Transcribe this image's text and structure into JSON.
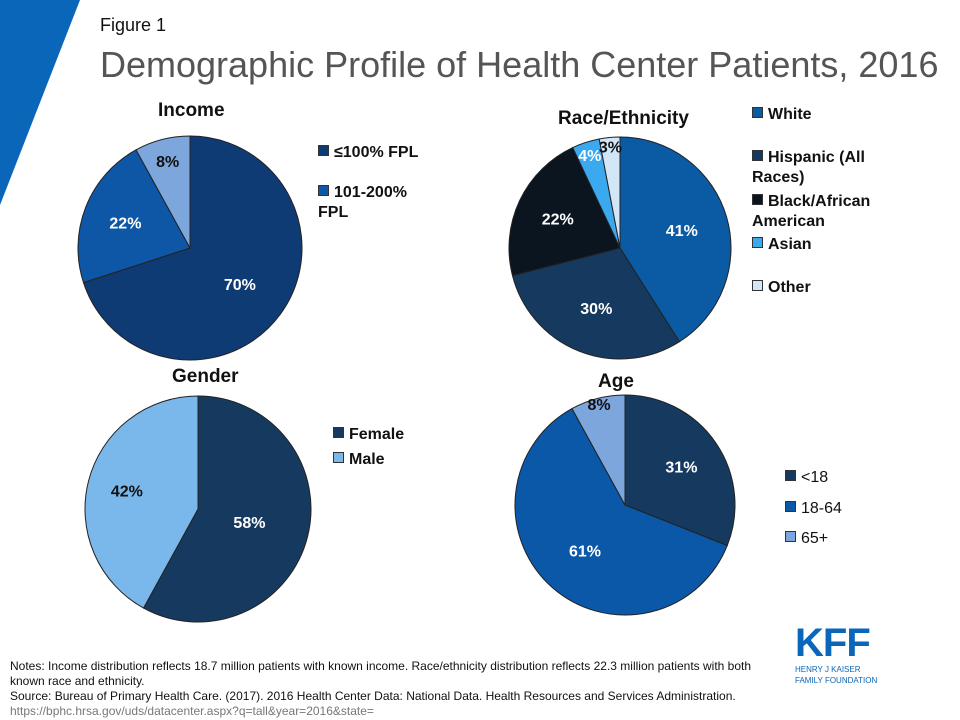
{
  "figure_label": "Figure 1",
  "title": "Demographic Profile of Health Center Patients, 2016",
  "notes": {
    "line1": "Notes: Income distribution reflects 18.7 million patients with known income. Race/ethnicity distribution reflects 22.3  million patients with both known race and ethnicity.",
    "source": "Source: Bureau of Primary Health Care. (2017). 2016 Health Center Data: National Data. Health Resources and Services Administration.",
    "url": "https://bphc.hrsa.gov/uds/datacenter.aspx?q=tall&year=2016&state="
  },
  "logo": {
    "mark": "KFF",
    "line1": "HENRY J KAISER",
    "line2": "FAMILY FOUNDATION"
  },
  "colors": {
    "corner_accent": "#0a66b8"
  },
  "chart_data": [
    {
      "type": "pie",
      "title": "Income",
      "legend_position": "right",
      "series": [
        {
          "name": "≤100% FPL",
          "value": 70,
          "label": "70%",
          "color": "#0f3b75"
        },
        {
          "name": "101-200% FPL",
          "value": 22,
          "label": "22%",
          "color": "#0d57a6"
        },
        {
          "name": "",
          "value": 8,
          "label": "8%",
          "color": "#7ca6dc"
        }
      ]
    },
    {
      "type": "pie",
      "title": "Race/Ethnicity",
      "legend_position": "right",
      "series": [
        {
          "name": "White",
          "value": 41,
          "label": "41%",
          "color": "#0b5aa4"
        },
        {
          "name": "Hispanic (All Races)",
          "value": 30,
          "label": "30%",
          "color": "#163a5f"
        },
        {
          "name": "Black/African American",
          "value": 22,
          "label": "22%",
          "color": "#0b1520"
        },
        {
          "name": "Asian",
          "value": 4,
          "label": "4%",
          "color": "#3aa9f0"
        },
        {
          "name": "Other",
          "value": 3,
          "label": "3%",
          "color": "#d2e6f8"
        }
      ]
    },
    {
      "type": "pie",
      "title": "Gender",
      "legend_position": "right",
      "series": [
        {
          "name": "Female",
          "value": 58,
          "label": "58%",
          "color": "#163a5f"
        },
        {
          "name": "Male",
          "value": 42,
          "label": "42%",
          "color": "#7ab8ec"
        }
      ]
    },
    {
      "type": "pie",
      "title": "Age",
      "legend_position": "right",
      "series": [
        {
          "name": "<18",
          "value": 31,
          "label": "31%",
          "color": "#163a5f"
        },
        {
          "name": "18-64",
          "value": 61,
          "label": "61%",
          "color": "#0b57a8"
        },
        {
          "name": "65+",
          "value": 8,
          "label": "8%",
          "color": "#7ca6dc"
        }
      ]
    }
  ]
}
